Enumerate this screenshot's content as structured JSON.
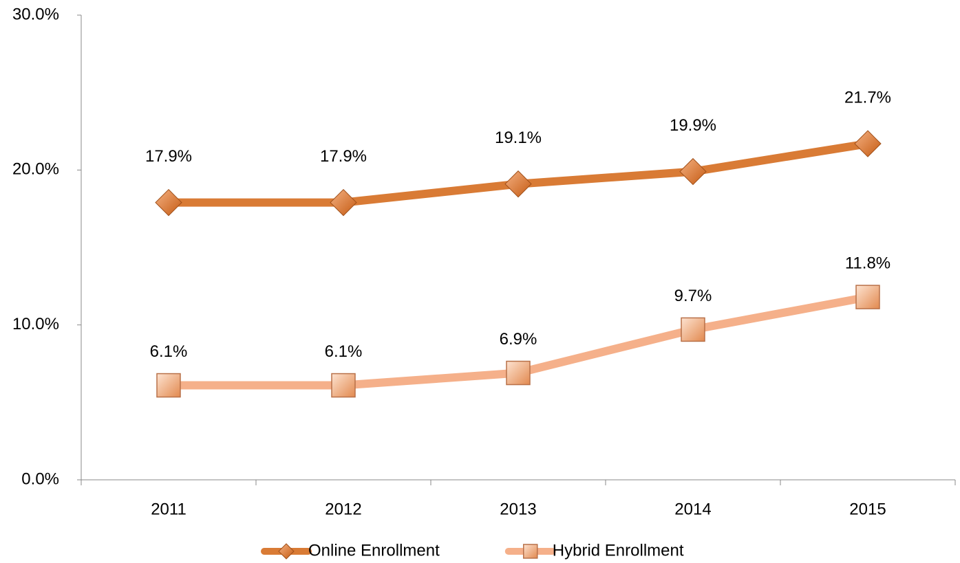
{
  "chart_data": {
    "type": "line",
    "categories": [
      "2011",
      "2012",
      "2013",
      "2014",
      "2015"
    ],
    "series": [
      {
        "name": "Online Enrollment",
        "color": "#d97b35",
        "marker": "diamond",
        "values": [
          17.9,
          17.9,
          19.1,
          19.9,
          21.7
        ],
        "value_labels": [
          "17.9%",
          "17.9%",
          "19.1%",
          "19.9%",
          "21.7%"
        ]
      },
      {
        "name": "Hybrid Enrollment",
        "color": "#f5b08a",
        "marker": "square",
        "values": [
          6.1,
          6.1,
          6.9,
          9.7,
          11.8
        ],
        "value_labels": [
          "6.1%",
          "6.1%",
          "6.9%",
          "9.7%",
          "11.8%"
        ]
      }
    ],
    "ylim": [
      0,
      30
    ],
    "yticks": [
      {
        "value": 0,
        "label": "0.0%"
      },
      {
        "value": 10,
        "label": "10.0%"
      },
      {
        "value": 20,
        "label": "20.0%"
      },
      {
        "value": 30,
        "label": "30.0%"
      }
    ],
    "grid": false,
    "legend": "bottom"
  }
}
